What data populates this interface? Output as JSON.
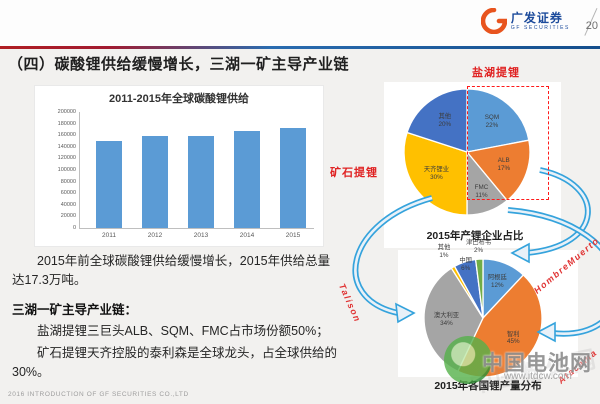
{
  "header": {
    "brand_cn": "广发证券",
    "brand_en": "GF SECURITIES",
    "page_number": "20"
  },
  "title": "（四）碳酸锂供给缓慢增长，三湖一矿主导产业链",
  "body_text": {
    "para1": "2015年前全球碳酸锂供给缓慢增长，2015年供给总量达17.3万吨。",
    "heading": "三湖一矿主导产业链：",
    "para2": "盐湖提锂三巨头ALB、SQM、FMC占市场份额50%；",
    "para3": "矿石提锂天齐控股的泰利森是全球龙头，占全球供给的30%。"
  },
  "annotations": {
    "salt_lake_label": "盐湖提锂",
    "ore_label": "矿石提锂",
    "talison": "Talison",
    "hombre_muerto": "HombreMuerto",
    "atacama": "Atacama"
  },
  "watermark": {
    "site_name": "中国电池网",
    "site_url": "www.itdcw.com",
    "faint_text": "中国粉体网"
  },
  "footer": "2016 INTRODUCTION OF GF SECURITIES CO.,LTD",
  "colors": {
    "accent_red": "#e02222",
    "brand_blue": "#1b4a9b",
    "logo_orange": "#e8541e"
  },
  "chart_data": [
    {
      "type": "bar",
      "title": "2011-2015年全球碳酸锂供给",
      "categories": [
        "2011",
        "2012",
        "2013",
        "2014",
        "2015"
      ],
      "values": [
        150000,
        158000,
        158000,
        168000,
        173000
      ],
      "ylim": [
        0,
        200000
      ],
      "ytick_step": 20000,
      "bar_color": "#5b9bd5",
      "grid": false,
      "legend": false
    },
    {
      "type": "pie",
      "title": "2015年产锂企业占比",
      "slices": [
        {
          "label": "SQM",
          "value": 22,
          "color": "#5b9bd5",
          "label_r": 0.62
        },
        {
          "label": "ALB",
          "value": 17,
          "color": "#ed7d31",
          "label_r": 0.62
        },
        {
          "label": "FMC",
          "value": 11,
          "color": "#a5a5a5",
          "label_r": 0.68
        },
        {
          "label": "天齐锂业",
          "value": 30,
          "color": "#ffc000",
          "label_r": 0.6
        },
        {
          "label": "其他",
          "value": 20,
          "color": "#4472c4",
          "label_r": 0.6
        }
      ]
    },
    {
      "type": "pie",
      "title": "2015年各国锂产量分布",
      "slices": [
        {
          "label": "阿根廷",
          "value": 12,
          "color": "#5b9bd5",
          "label_r": 0.66
        },
        {
          "label": "智利",
          "value": 45,
          "color": "#ed7d31",
          "label_r": 0.62
        },
        {
          "label": "澳大利亚",
          "value": 34,
          "color": "#a5a5a5",
          "label_r": 0.62
        },
        {
          "label": "其他",
          "value": 1,
          "color": "#ffc000",
          "label_r": 1.3
        },
        {
          "label": "中国",
          "value": 6,
          "color": "#4472c4",
          "label_r": 0.95
        },
        {
          "label": "津巴布韦",
          "value": 2,
          "color": "#70ad47",
          "label_r": 1.2
        }
      ]
    }
  ]
}
